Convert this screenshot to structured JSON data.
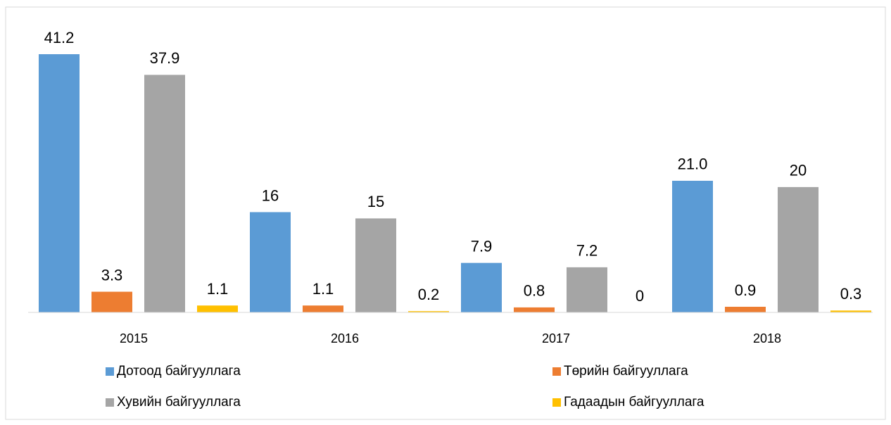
{
  "chart_data": {
    "type": "bar",
    "categories": [
      "2015",
      "2016",
      "2017",
      "2018"
    ],
    "series": [
      {
        "name": "Дотоод байгууллага",
        "color": "#5b9bd5",
        "values": [
          41.2,
          16,
          7.9,
          21.0
        ],
        "value_labels": [
          "41.2",
          "16",
          "7.9",
          "21.0"
        ]
      },
      {
        "name": "Төрийн байгууллага",
        "color": "#ed7d31",
        "values": [
          3.3,
          1.1,
          0.8,
          0.9
        ]
      },
      {
        "name": "Хувийн байгууллага",
        "color": "#a5a5a5",
        "values": [
          37.9,
          15,
          7.2,
          20
        ]
      },
      {
        "name": "Гадаадын байгууллага",
        "color": "#ffc000",
        "values": [
          1.1,
          0.2,
          0,
          0.3
        ]
      }
    ],
    "legend": "bottom"
  }
}
